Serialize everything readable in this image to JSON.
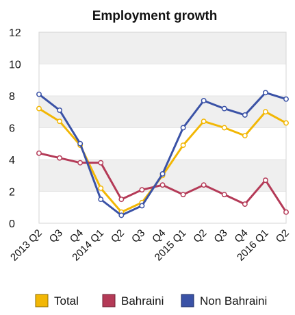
{
  "chart_data": {
    "type": "line",
    "title": "Employment growth",
    "xlabel": "",
    "ylabel": "",
    "ylim": [
      0,
      12
    ],
    "yticks": [
      "0",
      "2",
      "4",
      "6",
      "8",
      "10",
      "12"
    ],
    "categories": [
      "2013 Q2",
      "Q3",
      "Q4",
      "2014 Q1",
      "Q2",
      "Q3",
      "Q4",
      "2015 Q1",
      "Q2",
      "Q3",
      "Q4",
      "2016 Q1",
      "Q2"
    ],
    "series": [
      {
        "name": "Total",
        "color": "#f2b705",
        "values": [
          7.2,
          6.4,
          4.9,
          2.2,
          0.7,
          1.3,
          3.0,
          4.9,
          6.4,
          6.0,
          5.5,
          7.0,
          6.3
        ]
      },
      {
        "name": "Bahraini",
        "color": "#b43a57",
        "values": [
          4.4,
          4.1,
          3.8,
          3.8,
          1.5,
          2.1,
          2.4,
          1.8,
          2.4,
          1.8,
          1.2,
          2.7,
          0.7
        ]
      },
      {
        "name": "Non Bahraini",
        "color": "#3a52a6",
        "values": [
          8.1,
          7.1,
          5.0,
          1.5,
          0.5,
          1.1,
          3.1,
          6.0,
          7.7,
          7.2,
          6.8,
          8.2,
          7.8
        ]
      }
    ],
    "grid": true,
    "legend": "bottom"
  },
  "legend": {
    "items": [
      {
        "label": "Total",
        "color": "#f2b705"
      },
      {
        "label": "Bahraini",
        "color": "#b43a57"
      },
      {
        "label": "Non Bahraini",
        "color": "#3a52a6"
      }
    ]
  }
}
